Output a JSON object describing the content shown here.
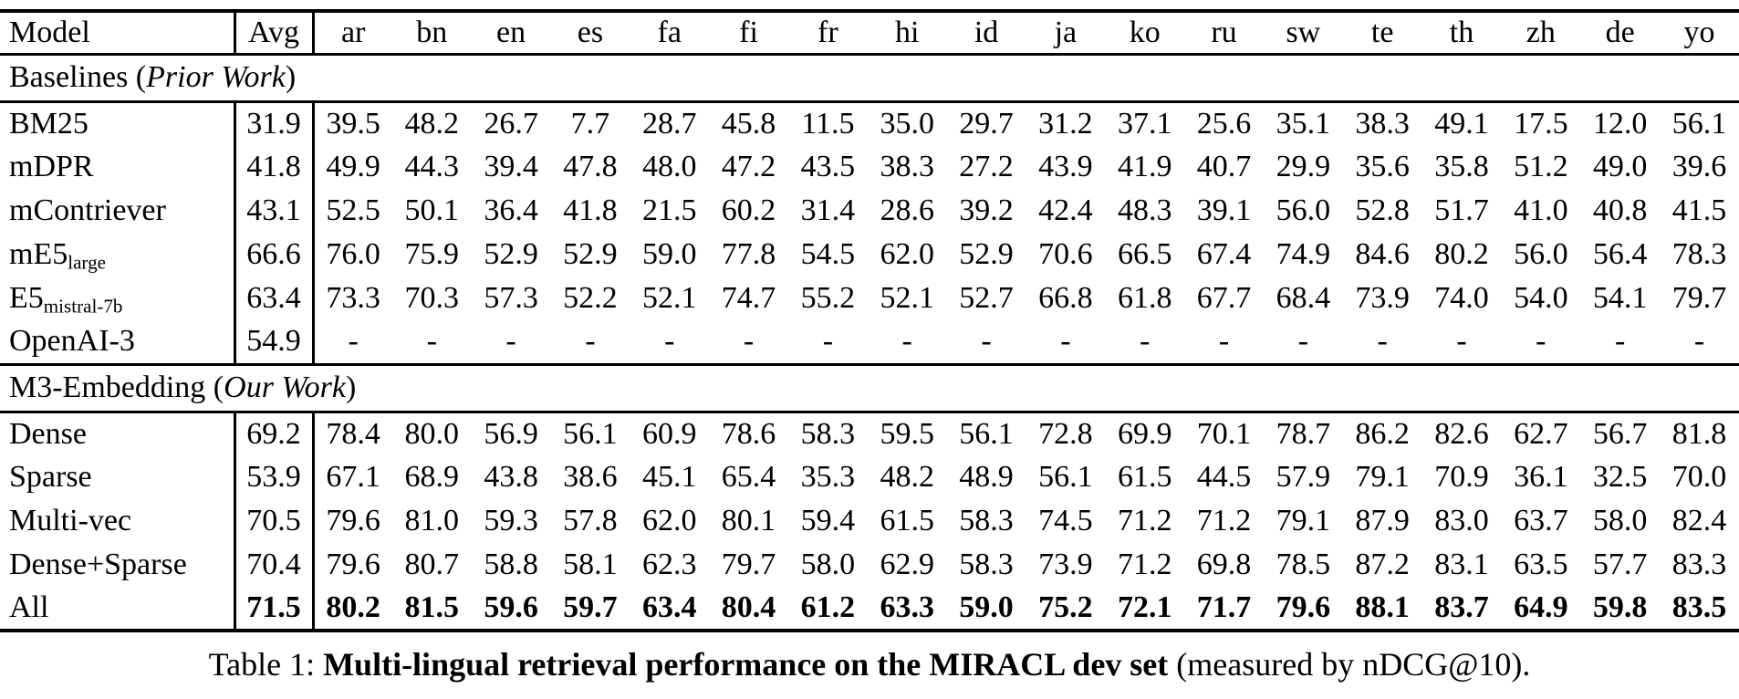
{
  "colors": {
    "text": "#000000",
    "background": "#ffffff",
    "rule": "#000000"
  },
  "header": {
    "model_label": "Model",
    "avg_label": "Avg",
    "languages": [
      "ar",
      "bn",
      "en",
      "es",
      "fa",
      "fi",
      "fr",
      "hi",
      "id",
      "ja",
      "ko",
      "ru",
      "sw",
      "te",
      "th",
      "zh",
      "de",
      "yo"
    ]
  },
  "sections": [
    {
      "title_prefix": "Baselines (",
      "title_italic": "Prior Work",
      "title_suffix": ")",
      "rows": [
        {
          "model": "BM25",
          "subscript": "",
          "avg": "31.9",
          "bold": false,
          "values": [
            "39.5",
            "48.2",
            "26.7",
            "7.7",
            "28.7",
            "45.8",
            "11.5",
            "35.0",
            "29.7",
            "31.2",
            "37.1",
            "25.6",
            "35.1",
            "38.3",
            "49.1",
            "17.5",
            "12.0",
            "56.1"
          ]
        },
        {
          "model": "mDPR",
          "subscript": "",
          "avg": "41.8",
          "bold": false,
          "values": [
            "49.9",
            "44.3",
            "39.4",
            "47.8",
            "48.0",
            "47.2",
            "43.5",
            "38.3",
            "27.2",
            "43.9",
            "41.9",
            "40.7",
            "29.9",
            "35.6",
            "35.8",
            "51.2",
            "49.0",
            "39.6"
          ]
        },
        {
          "model": "mContriever",
          "subscript": "",
          "avg": "43.1",
          "bold": false,
          "values": [
            "52.5",
            "50.1",
            "36.4",
            "41.8",
            "21.5",
            "60.2",
            "31.4",
            "28.6",
            "39.2",
            "42.4",
            "48.3",
            "39.1",
            "56.0",
            "52.8",
            "51.7",
            "41.0",
            "40.8",
            "41.5"
          ]
        },
        {
          "model": "mE5",
          "subscript": "large",
          "avg": "66.6",
          "bold": false,
          "values": [
            "76.0",
            "75.9",
            "52.9",
            "52.9",
            "59.0",
            "77.8",
            "54.5",
            "62.0",
            "52.9",
            "70.6",
            "66.5",
            "67.4",
            "74.9",
            "84.6",
            "80.2",
            "56.0",
            "56.4",
            "78.3"
          ]
        },
        {
          "model": "E5",
          "subscript": "mistral-7b",
          "avg": "63.4",
          "bold": false,
          "values": [
            "73.3",
            "70.3",
            "57.3",
            "52.2",
            "52.1",
            "74.7",
            "55.2",
            "52.1",
            "52.7",
            "66.8",
            "61.8",
            "67.7",
            "68.4",
            "73.9",
            "74.0",
            "54.0",
            "54.1",
            "79.7"
          ]
        },
        {
          "model": "OpenAI-3",
          "subscript": "",
          "avg": "54.9",
          "bold": false,
          "values": [
            "-",
            "-",
            "-",
            "-",
            "-",
            "-",
            "-",
            "-",
            "-",
            "-",
            "-",
            "-",
            "-",
            "-",
            "-",
            "-",
            "-",
            "-"
          ]
        }
      ]
    },
    {
      "title_prefix": "M3-Embedding (",
      "title_italic": "Our Work",
      "title_suffix": ")",
      "rows": [
        {
          "model": "Dense",
          "subscript": "",
          "avg": "69.2",
          "bold": false,
          "values": [
            "78.4",
            "80.0",
            "56.9",
            "56.1",
            "60.9",
            "78.6",
            "58.3",
            "59.5",
            "56.1",
            "72.8",
            "69.9",
            "70.1",
            "78.7",
            "86.2",
            "82.6",
            "62.7",
            "56.7",
            "81.8"
          ]
        },
        {
          "model": "Sparse",
          "subscript": "",
          "avg": "53.9",
          "bold": false,
          "values": [
            "67.1",
            "68.9",
            "43.8",
            "38.6",
            "45.1",
            "65.4",
            "35.3",
            "48.2",
            "48.9",
            "56.1",
            "61.5",
            "44.5",
            "57.9",
            "79.1",
            "70.9",
            "36.1",
            "32.5",
            "70.0"
          ]
        },
        {
          "model": "Multi-vec",
          "subscript": "",
          "avg": "70.5",
          "bold": false,
          "values": [
            "79.6",
            "81.0",
            "59.3",
            "57.8",
            "62.0",
            "80.1",
            "59.4",
            "61.5",
            "58.3",
            "74.5",
            "71.2",
            "71.2",
            "79.1",
            "87.9",
            "83.0",
            "63.7",
            "58.0",
            "82.4"
          ]
        },
        {
          "model": "Dense+Sparse",
          "subscript": "",
          "avg": "70.4",
          "bold": false,
          "values": [
            "79.6",
            "80.7",
            "58.8",
            "58.1",
            "62.3",
            "79.7",
            "58.0",
            "62.9",
            "58.3",
            "73.9",
            "71.2",
            "69.8",
            "78.5",
            "87.2",
            "83.1",
            "63.5",
            "57.7",
            "83.3"
          ]
        },
        {
          "model": "All",
          "subscript": "",
          "avg": "71.5",
          "bold": true,
          "values": [
            "80.2",
            "81.5",
            "59.6",
            "59.7",
            "63.4",
            "80.4",
            "61.2",
            "63.3",
            "59.0",
            "75.2",
            "72.1",
            "71.7",
            "79.6",
            "88.1",
            "83.7",
            "64.9",
            "59.8",
            "83.5"
          ]
        }
      ]
    }
  ],
  "caption": {
    "prefix": "Table 1: ",
    "bold": "Multi-lingual retrieval performance on the MIRACL dev set",
    "suffix": " (measured by nDCG@10)."
  }
}
